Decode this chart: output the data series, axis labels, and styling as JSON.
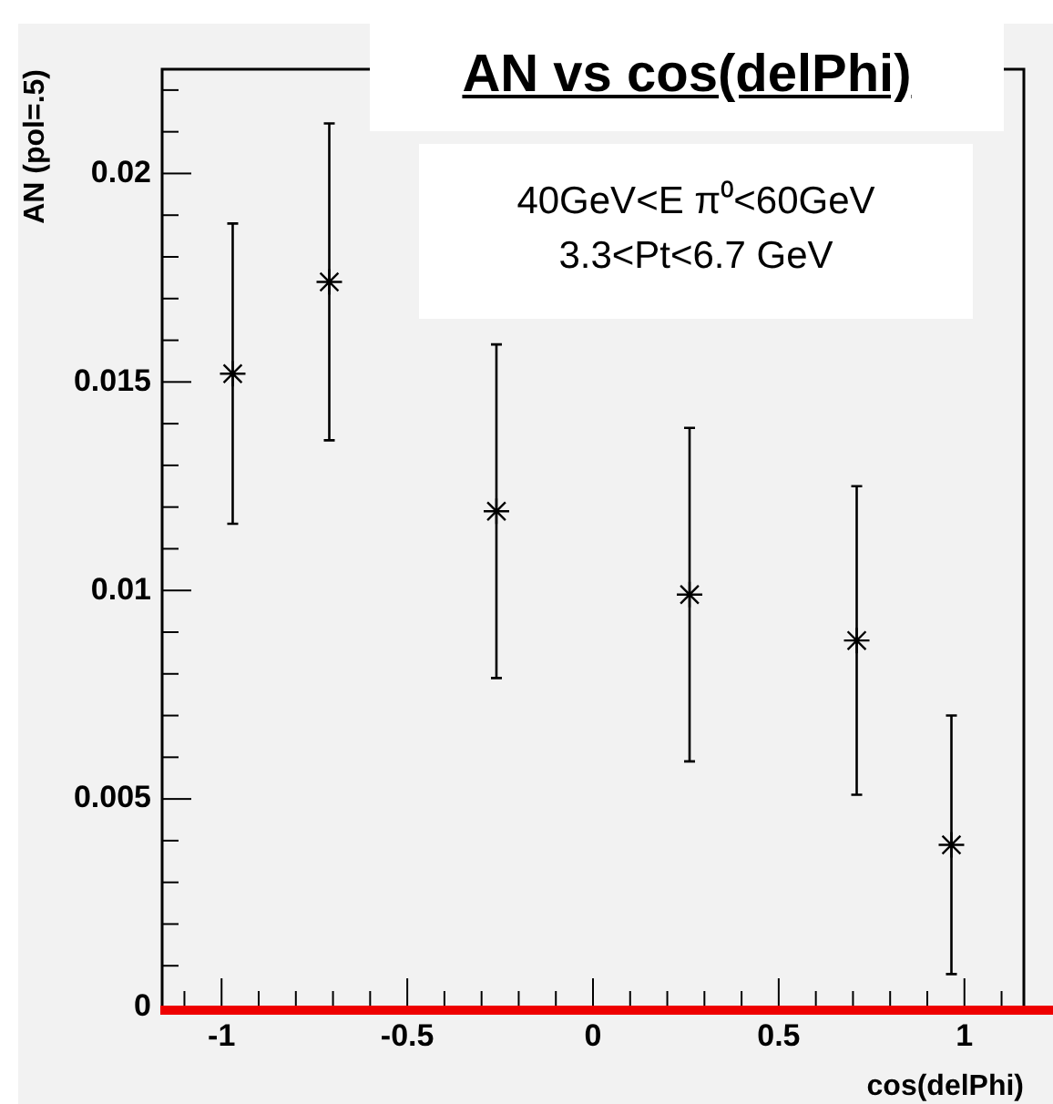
{
  "chart_data": {
    "type": "scatter",
    "title": "AN vs cos(delPhi)",
    "annotations": [
      "40GeV<E π⁰<60GeV\n3.3<Pt<6.7 GeV"
    ],
    "xlabel": "cos(delPhi)",
    "ylabel": "AN (pol=.5)",
    "series": [
      {
        "color": "#000000",
        "x": [
          -0.97,
          -0.71,
          -0.26,
          0.26,
          0.71,
          0.965
        ],
        "values": [
          0.0152,
          0.0174,
          0.0119,
          0.0099,
          0.0088,
          0.0039
        ],
        "errors": [
          0.0036,
          0.0038,
          0.004,
          0.004,
          0.0037,
          0.0031
        ]
      }
    ],
    "xlim": [
      -1.16,
      1.16
    ],
    "xticks": [
      {
        "value": -1.1,
        "label": null
      },
      -1,
      {
        "value": -0.9,
        "label": null
      },
      {
        "value": -0.8,
        "label": null
      },
      {
        "value": -0.7,
        "label": null
      },
      {
        "value": -0.6,
        "label": null
      },
      -0.5,
      {
        "value": -0.4,
        "label": null
      },
      {
        "value": -0.3,
        "label": null
      },
      {
        "value": -0.2,
        "label": null
      },
      {
        "value": -0.1,
        "label": null
      },
      0,
      {
        "value": 0.1,
        "label": null
      },
      {
        "value": 0.2,
        "label": null
      },
      {
        "value": 0.3,
        "label": null
      },
      {
        "value": 0.4,
        "label": null
      },
      0.5,
      {
        "value": 0.6,
        "label": null
      },
      {
        "value": 0.7,
        "label": null
      },
      {
        "value": 0.8,
        "label": null
      },
      {
        "value": 0.9,
        "label": null
      },
      1,
      {
        "value": 1.1,
        "label": null
      }
    ],
    "ylim": [
      0,
      0.0225
    ],
    "yticks": [
      0,
      {
        "value": 0.001,
        "label": null
      },
      {
        "value": 0.002,
        "label": null
      },
      {
        "value": 0.003,
        "label": null
      },
      {
        "value": 0.004,
        "label": null
      },
      0.005,
      {
        "value": 0.006,
        "label": null
      },
      {
        "value": 0.007,
        "label": null
      },
      {
        "value": 0.008,
        "label": null
      },
      {
        "value": 0.009,
        "label": null
      },
      0.01,
      {
        "value": 0.011,
        "label": null
      },
      {
        "value": 0.012,
        "label": null
      },
      {
        "value": 0.013,
        "label": null
      },
      {
        "value": 0.014,
        "label": null
      },
      0.015,
      {
        "value": 0.016,
        "label": null
      },
      {
        "value": 0.017,
        "label": null
      },
      {
        "value": 0.018,
        "label": null
      },
      {
        "value": 0.019,
        "label": null
      },
      0.02,
      {
        "value": 0.021,
        "label": null
      },
      {
        "value": 0.022,
        "label": null
      }
    ],
    "marker": "cross",
    "grid": false,
    "legend": false
  }
}
